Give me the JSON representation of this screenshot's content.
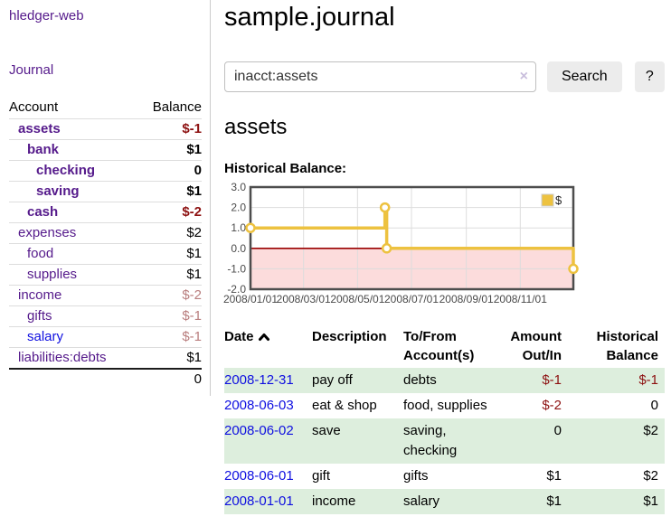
{
  "colors": {
    "link_purple": "#551a8b",
    "link_blue": "#0f0fe0",
    "negative_strong": "#8d1111",
    "negative_muted": "#b97e7e",
    "row_stripe_green": "#ddeedd",
    "button_gray": "#ececec"
  },
  "app": {
    "brand": "hledger-web",
    "nav_journal": "Journal"
  },
  "sidebar": {
    "header": {
      "account": "Account",
      "balance": "Balance"
    },
    "accounts": [
      {
        "label": "assets",
        "label_class": "purple b",
        "balance": "$-1",
        "balance_class": "neg b"
      },
      {
        "label": "bank",
        "label_class": "purple b",
        "balance": "$1",
        "balance_class": "b"
      },
      {
        "label": "checking",
        "label_class": "purple b",
        "balance": "0",
        "balance_class": "b"
      },
      {
        "label": "saving",
        "label_class": "purple b",
        "balance": "$1",
        "balance_class": "b"
      },
      {
        "label": "cash",
        "label_class": "purple b",
        "balance": "$-2",
        "balance_class": "neg b"
      },
      {
        "label": "expenses",
        "label_class": "purple",
        "balance": "$2",
        "balance_class": ""
      },
      {
        "label": "food",
        "label_class": "purple",
        "balance": "$1",
        "balance_class": ""
      },
      {
        "label": "supplies",
        "label_class": "purple",
        "balance": "$1",
        "balance_class": ""
      },
      {
        "label": "income",
        "label_class": "purple",
        "balance": "$-2",
        "balance_class": "negm"
      },
      {
        "label": "gifts",
        "label_class": "purple",
        "balance": "$-1",
        "balance_class": "negm"
      },
      {
        "label": "salary",
        "label_class": "blue",
        "balance": "$-1",
        "balance_class": "negm"
      },
      {
        "label": "liabilities:debts",
        "label_class": "purple",
        "balance": "$1",
        "balance_class": ""
      }
    ],
    "total": "0"
  },
  "main": {
    "title": "sample.journal",
    "search": {
      "value": "inacct:assets",
      "clear": "×",
      "submit": "Search",
      "help": "?"
    },
    "heading": "assets",
    "chart_title": "Historical Balance:"
  },
  "chart_data": {
    "type": "line",
    "step": true,
    "title": "Historical Balance",
    "series": [
      {
        "name": "$",
        "color": "#edc240",
        "points": [
          [
            "2008-01-01",
            1
          ],
          [
            "2008-06-01",
            2
          ],
          [
            "2008-06-03",
            0
          ],
          [
            "2008-12-31",
            -1
          ]
        ]
      }
    ],
    "xrange": [
      "2008-01-01",
      "2008-12-31"
    ],
    "ylim": [
      -2,
      3
    ],
    "yticks": [
      "3.0",
      "2.0",
      "1.0",
      "0.0",
      "-1.0",
      "-2.0"
    ],
    "xticks": [
      {
        "label": "2008/01/01",
        "date": "2008-01-01"
      },
      {
        "label": "2008/03/01",
        "date": "2008-03-01"
      },
      {
        "label": "2008/05/01",
        "date": "2008-05-01"
      },
      {
        "label": "2008/07/01",
        "date": "2008-07-01"
      },
      {
        "label": "2008/09/01",
        "date": "2008-09-01"
      },
      {
        "label": "2008/11/01",
        "date": "2008-11-01"
      }
    ],
    "grid": true,
    "grid_color": "#dddddd",
    "border_color": "#4d4d4d",
    "negative_region": true,
    "negative_region_color": "#fcdcdc",
    "zero_line_color": "#990000",
    "legend": {
      "label": "$",
      "position": "top-right"
    }
  },
  "register": {
    "headers": {
      "date": "Date",
      "description": "Description",
      "account": "To/From Account(s)",
      "amount": "Amount Out/In",
      "balance": "Historical Balance"
    },
    "rows": [
      {
        "date": "2008-12-31",
        "description": "pay off",
        "accounts": "debts",
        "amount": "$-1",
        "amount_class": "neg",
        "balance": "$-1",
        "balance_class": "neg"
      },
      {
        "date": "2008-06-03",
        "description": "eat & shop",
        "accounts": "food, supplies",
        "amount": "$-2",
        "amount_class": "neg",
        "balance": "0",
        "balance_class": ""
      },
      {
        "date": "2008-06-02",
        "description": "save",
        "accounts": "saving, checking",
        "amount": "0",
        "amount_class": "",
        "balance": "$2",
        "balance_class": ""
      },
      {
        "date": "2008-06-01",
        "description": "gift",
        "accounts": "gifts",
        "amount": "$1",
        "amount_class": "",
        "balance": "$2",
        "balance_class": ""
      },
      {
        "date": "2008-01-01",
        "description": "income",
        "accounts": "salary",
        "amount": "$1",
        "amount_class": "",
        "balance": "$1",
        "balance_class": ""
      }
    ]
  }
}
